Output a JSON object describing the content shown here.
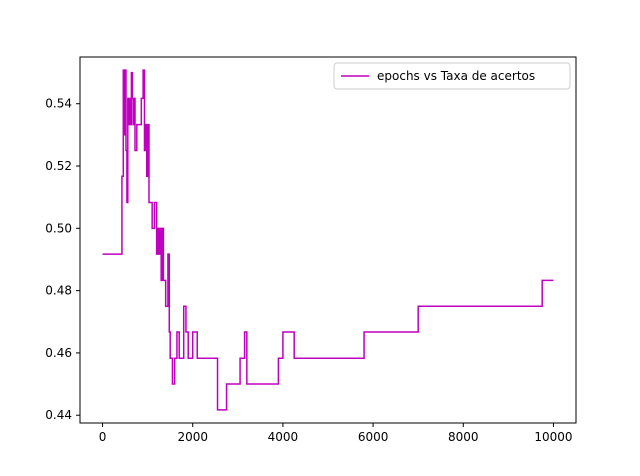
{
  "chart_data": {
    "type": "line",
    "title": "",
    "xlabel": "",
    "ylabel": "",
    "xlim": [
      -500,
      10500
    ],
    "ylim": [
      0.4375,
      0.555
    ],
    "xticks": [
      0,
      2000,
      4000,
      6000,
      8000,
      10000
    ],
    "yticks": [
      0.44,
      0.46,
      0.48,
      0.5,
      0.52,
      0.54
    ],
    "xtick_labels": [
      "0",
      "2000",
      "4000",
      "6000",
      "8000",
      "10000"
    ],
    "ytick_labels": [
      "0.44",
      "0.46",
      "0.48",
      "0.50",
      "0.52",
      "0.54"
    ],
    "grid": false,
    "legend_position": "top-right",
    "series": [
      {
        "name": "epochs vs Taxa de acertos",
        "color": "#bf00bf",
        "step": "post",
        "x": [
          0,
          430,
          460,
          480,
          500,
          520,
          540,
          560,
          580,
          600,
          620,
          640,
          660,
          680,
          700,
          720,
          760,
          800,
          860,
          900,
          930,
          960,
          980,
          1000,
          1030,
          1060,
          1100,
          1150,
          1200,
          1230,
          1250,
          1280,
          1300,
          1330,
          1350,
          1380,
          1400,
          1430,
          1450,
          1480,
          1500,
          1550,
          1600,
          1650,
          1700,
          1750,
          1800,
          1850,
          1900,
          1950,
          2000,
          2050,
          2100,
          2450,
          2550,
          2750,
          2800,
          2830,
          3050,
          3150,
          3200,
          3220,
          3900,
          4000,
          4250,
          5800,
          7000,
          9750,
          10000
        ],
        "values": [
          0.4917,
          0.5167,
          0.5508,
          0.53,
          0.5508,
          0.525,
          0.5083,
          0.5417,
          0.5333,
          0.5417,
          0.5333,
          0.55,
          0.5417,
          0.5333,
          0.5417,
          0.525,
          0.5333,
          0.5333,
          0.5417,
          0.5508,
          0.525,
          0.5333,
          0.5167,
          0.5333,
          0.5083,
          0.5083,
          0.5,
          0.5083,
          0.4917,
          0.5,
          0.4917,
          0.5,
          0.4833,
          0.5,
          0.4833,
          0.4833,
          0.475,
          0.475,
          0.4917,
          0.4667,
          0.4583,
          0.45,
          0.4583,
          0.4667,
          0.4583,
          0.4583,
          0.475,
          0.4667,
          0.4583,
          0.4583,
          0.4667,
          0.4667,
          0.4583,
          0.4583,
          0.4417,
          0.45,
          0.45,
          0.45,
          0.4583,
          0.4667,
          0.45,
          0.45,
          0.4583,
          0.4667,
          0.4583,
          0.4667,
          0.475,
          0.4833,
          0.4833
        ]
      }
    ]
  }
}
